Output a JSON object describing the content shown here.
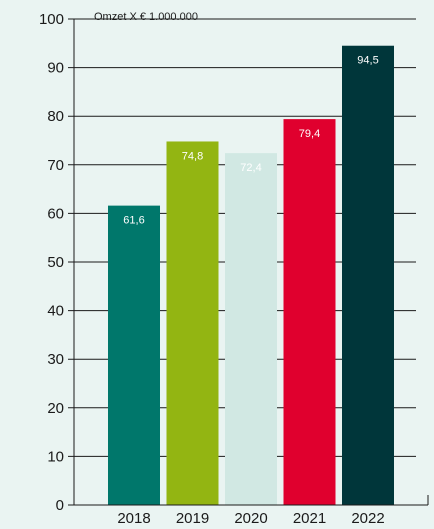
{
  "chart_data": {
    "type": "bar",
    "unit_label": "Omzet X € 1.000.000",
    "categories": [
      "2018",
      "2019",
      "2020",
      "2021",
      "2022"
    ],
    "values": [
      61.6,
      74.8,
      72.4,
      79.4,
      94.5
    ],
    "value_labels": [
      "61,6",
      "74,8",
      "72,4",
      "79,4",
      "94,5"
    ],
    "colors": [
      "#00776b",
      "#93b512",
      "#d1e8e3",
      "#e0002e",
      "#00363a"
    ],
    "yticks": [
      0,
      10,
      20,
      30,
      40,
      50,
      60,
      70,
      80,
      90,
      100
    ],
    "ylim": [
      0,
      100
    ],
    "grid": true
  }
}
